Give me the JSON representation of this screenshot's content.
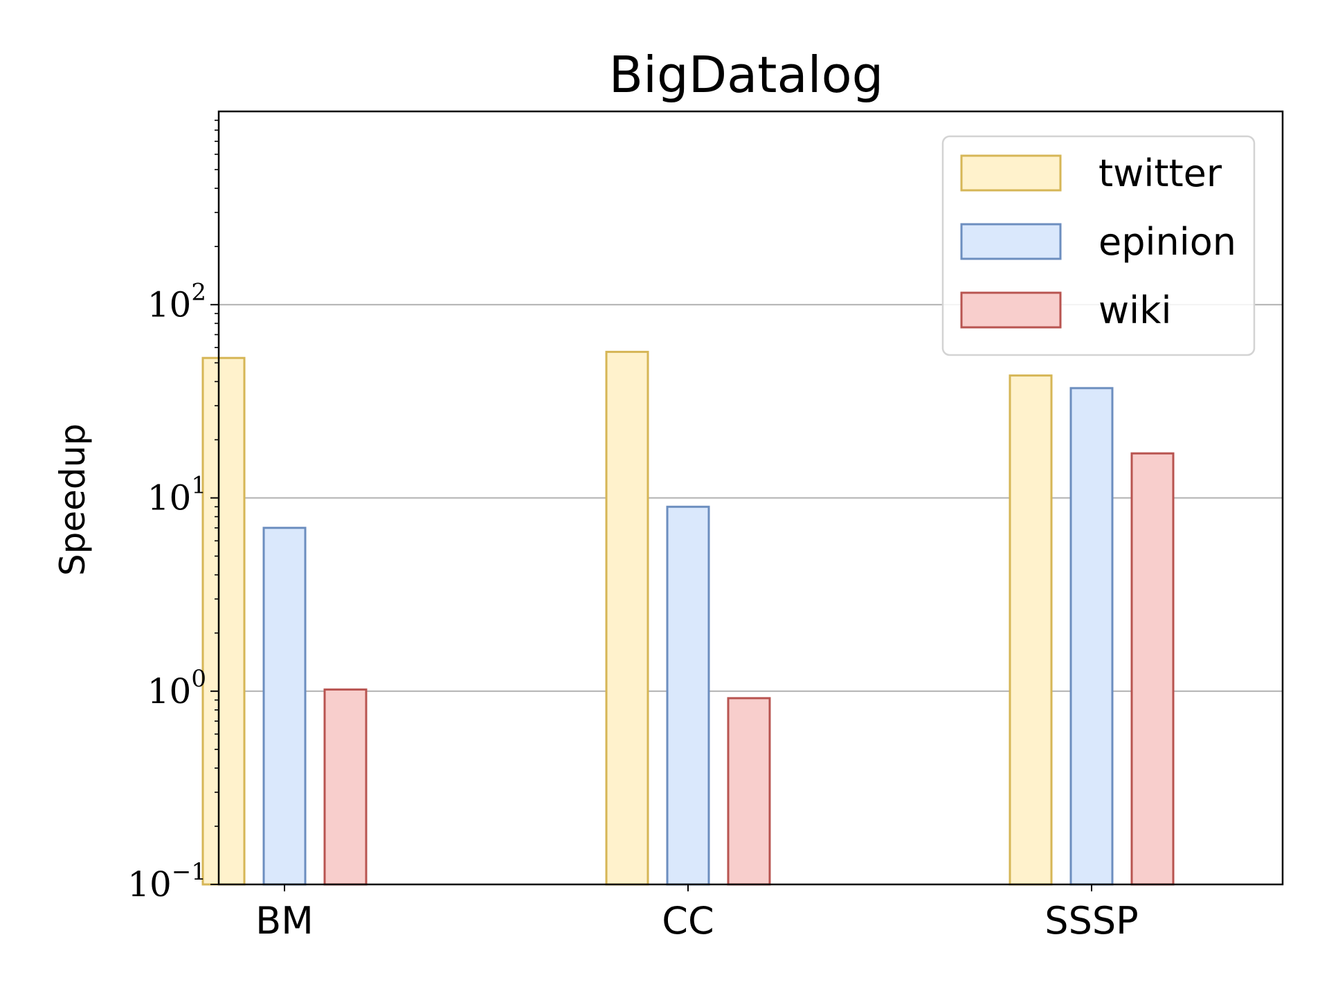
{
  "chart_data": {
    "type": "bar",
    "title": "BigDatalog",
    "xlabel": "",
    "ylabel": "Speedup",
    "yscale": "log",
    "ylim": [
      0.1,
      1000
    ],
    "yticks": [
      {
        "value": 0.1,
        "base": "10",
        "exp": "−1"
      },
      {
        "value": 1,
        "base": "10",
        "exp": "0"
      },
      {
        "value": 10,
        "base": "10",
        "exp": "1"
      },
      {
        "value": 100,
        "base": "10",
        "exp": "2"
      }
    ],
    "grid": "horizontal-major",
    "legend_position": "top-right",
    "categories": [
      "BM",
      "CC",
      "SSSP"
    ],
    "series": [
      {
        "name": "twitter",
        "values": [
          53,
          57,
          43
        ],
        "fill": "#fff2cc",
        "stroke": "#d6b656"
      },
      {
        "name": "epinion",
        "values": [
          7.0,
          9.0,
          37
        ],
        "fill": "#dae8fc",
        "stroke": "#6c8ebf"
      },
      {
        "name": "wiki",
        "values": [
          1.02,
          0.92,
          17
        ],
        "fill": "#f8cecc",
        "stroke": "#b85450"
      }
    ]
  }
}
